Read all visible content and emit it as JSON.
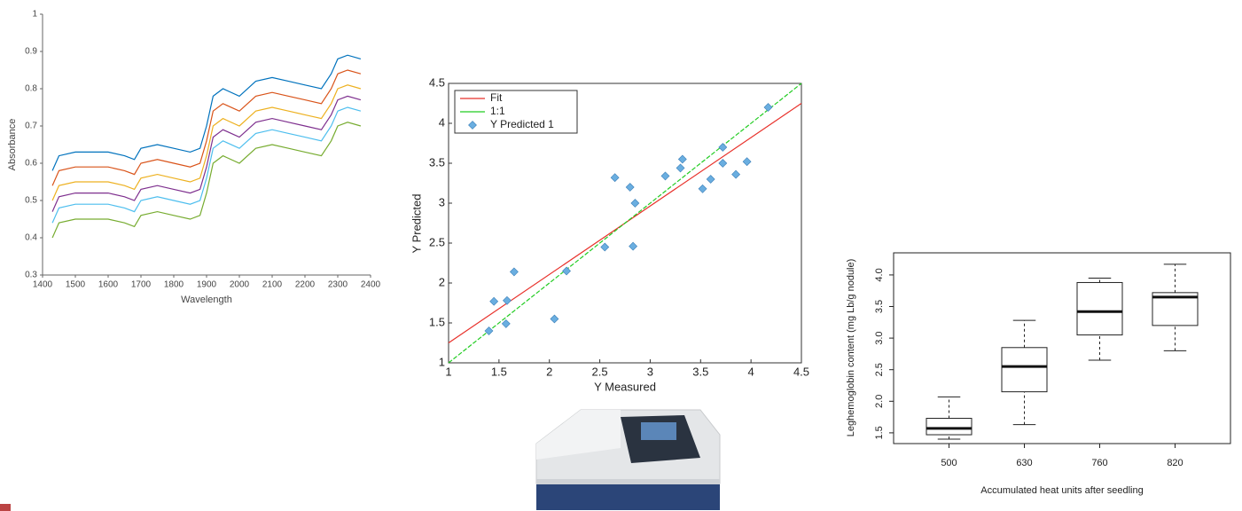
{
  "chart_data": [
    {
      "type": "line",
      "xlabel": "Wavelength",
      "ylabel": "Absorbance",
      "x": [
        1430,
        1450,
        1500,
        1550,
        1600,
        1650,
        1680,
        1700,
        1750,
        1800,
        1850,
        1880,
        1900,
        1920,
        1950,
        2000,
        2050,
        2100,
        2150,
        2200,
        2250,
        2280,
        2300,
        2330,
        2370
      ],
      "xlim": [
        1400,
        2400
      ],
      "xticks": [
        1400,
        1500,
        1600,
        1700,
        1800,
        1900,
        2000,
        2100,
        2200,
        2300,
        2400
      ],
      "ylim": [
        0.3,
        1
      ],
      "yticks": [
        0.3,
        0.4,
        0.5,
        0.6,
        0.7,
        0.8,
        0.9,
        1
      ],
      "series": [
        {
          "color": "#0072bd",
          "values": [
            0.58,
            0.62,
            0.63,
            0.63,
            0.63,
            0.62,
            0.61,
            0.64,
            0.65,
            0.64,
            0.63,
            0.64,
            0.7,
            0.78,
            0.8,
            0.78,
            0.82,
            0.83,
            0.82,
            0.81,
            0.8,
            0.84,
            0.88,
            0.89,
            0.88
          ]
        },
        {
          "color": "#d95319",
          "values": [
            0.54,
            0.58,
            0.59,
            0.59,
            0.59,
            0.58,
            0.57,
            0.6,
            0.61,
            0.6,
            0.59,
            0.6,
            0.66,
            0.74,
            0.76,
            0.74,
            0.78,
            0.79,
            0.78,
            0.77,
            0.76,
            0.8,
            0.84,
            0.85,
            0.84
          ]
        },
        {
          "color": "#edb120",
          "values": [
            0.5,
            0.54,
            0.55,
            0.55,
            0.55,
            0.54,
            0.53,
            0.56,
            0.57,
            0.56,
            0.55,
            0.56,
            0.62,
            0.7,
            0.72,
            0.7,
            0.74,
            0.75,
            0.74,
            0.73,
            0.72,
            0.76,
            0.8,
            0.81,
            0.8
          ]
        },
        {
          "color": "#7e2f8e",
          "values": [
            0.47,
            0.51,
            0.52,
            0.52,
            0.52,
            0.51,
            0.5,
            0.53,
            0.54,
            0.53,
            0.52,
            0.53,
            0.59,
            0.67,
            0.69,
            0.67,
            0.71,
            0.72,
            0.71,
            0.7,
            0.69,
            0.73,
            0.77,
            0.78,
            0.77
          ]
        },
        {
          "color": "#4dbeee",
          "values": [
            0.44,
            0.48,
            0.49,
            0.49,
            0.49,
            0.48,
            0.47,
            0.5,
            0.51,
            0.5,
            0.49,
            0.5,
            0.56,
            0.64,
            0.66,
            0.64,
            0.68,
            0.69,
            0.68,
            0.67,
            0.66,
            0.7,
            0.74,
            0.75,
            0.74
          ]
        },
        {
          "color": "#77ac30",
          "values": [
            0.4,
            0.44,
            0.45,
            0.45,
            0.45,
            0.44,
            0.43,
            0.46,
            0.47,
            0.46,
            0.45,
            0.46,
            0.52,
            0.6,
            0.62,
            0.6,
            0.64,
            0.65,
            0.64,
            0.63,
            0.62,
            0.66,
            0.7,
            0.71,
            0.7
          ]
        }
      ]
    },
    {
      "type": "scatter",
      "xlabel": "Y Measured",
      "ylabel": "Y Predicted",
      "xlim": [
        1,
        4.5
      ],
      "xticks": [
        1,
        1.5,
        2,
        2.5,
        3,
        3.5,
        4,
        4.5
      ],
      "ylim": [
        1,
        4.5
      ],
      "yticks": [
        1,
        1.5,
        2,
        2.5,
        3,
        3.5,
        4,
        4.5
      ],
      "series": [
        {
          "name": "Fit",
          "color": "#e8302a",
          "mode": "line",
          "x": [
            1,
            4.5
          ],
          "values": [
            1.25,
            4.25
          ]
        },
        {
          "name": "1:1",
          "color": "#22cc22",
          "mode": "line",
          "x": [
            1,
            4.5
          ],
          "values": [
            1,
            4.5
          ]
        },
        {
          "name": "Y Predicted 1",
          "color": "#6aaee0",
          "mode": "markers",
          "x": [
            1.4,
            1.45,
            1.57,
            1.58,
            1.65,
            2.05,
            2.17,
            2.55,
            2.65,
            2.8,
            2.83,
            2.85,
            3.15,
            3.3,
            3.32,
            3.52,
            3.6,
            3.72,
            3.72,
            3.85,
            3.96,
            4.17
          ],
          "values": [
            1.4,
            1.77,
            1.49,
            1.78,
            2.14,
            1.55,
            2.15,
            2.45,
            3.32,
            3.2,
            2.46,
            3.0,
            3.34,
            3.44,
            3.55,
            3.18,
            3.3,
            3.5,
            3.7,
            3.36,
            3.52,
            4.2
          ]
        }
      ]
    },
    {
      "type": "box",
      "xlabel": "Accumulated heat units after seedling",
      "ylabel": "Leghemoglobin content (mg Lb/g nodule)",
      "categories": [
        "500",
        "630",
        "760",
        "820"
      ],
      "min": [
        1.4,
        1.63,
        2.65,
        2.8
      ],
      "q1": [
        1.47,
        2.15,
        3.05,
        3.2
      ],
      "median": [
        1.57,
        2.55,
        3.42,
        3.65
      ],
      "q3": [
        1.73,
        2.85,
        3.88,
        3.72
      ],
      "max": [
        2.07,
        3.28,
        3.95,
        4.17
      ],
      "ylim": [
        1.33,
        4.35
      ],
      "yticks": [
        1.5,
        {
          "value": 2,
          "label": "2.0"
        },
        2.5,
        {
          "value": 3,
          "label": "3.0"
        },
        3.5,
        {
          "value": 4,
          "label": "4.0"
        }
      ]
    }
  ]
}
